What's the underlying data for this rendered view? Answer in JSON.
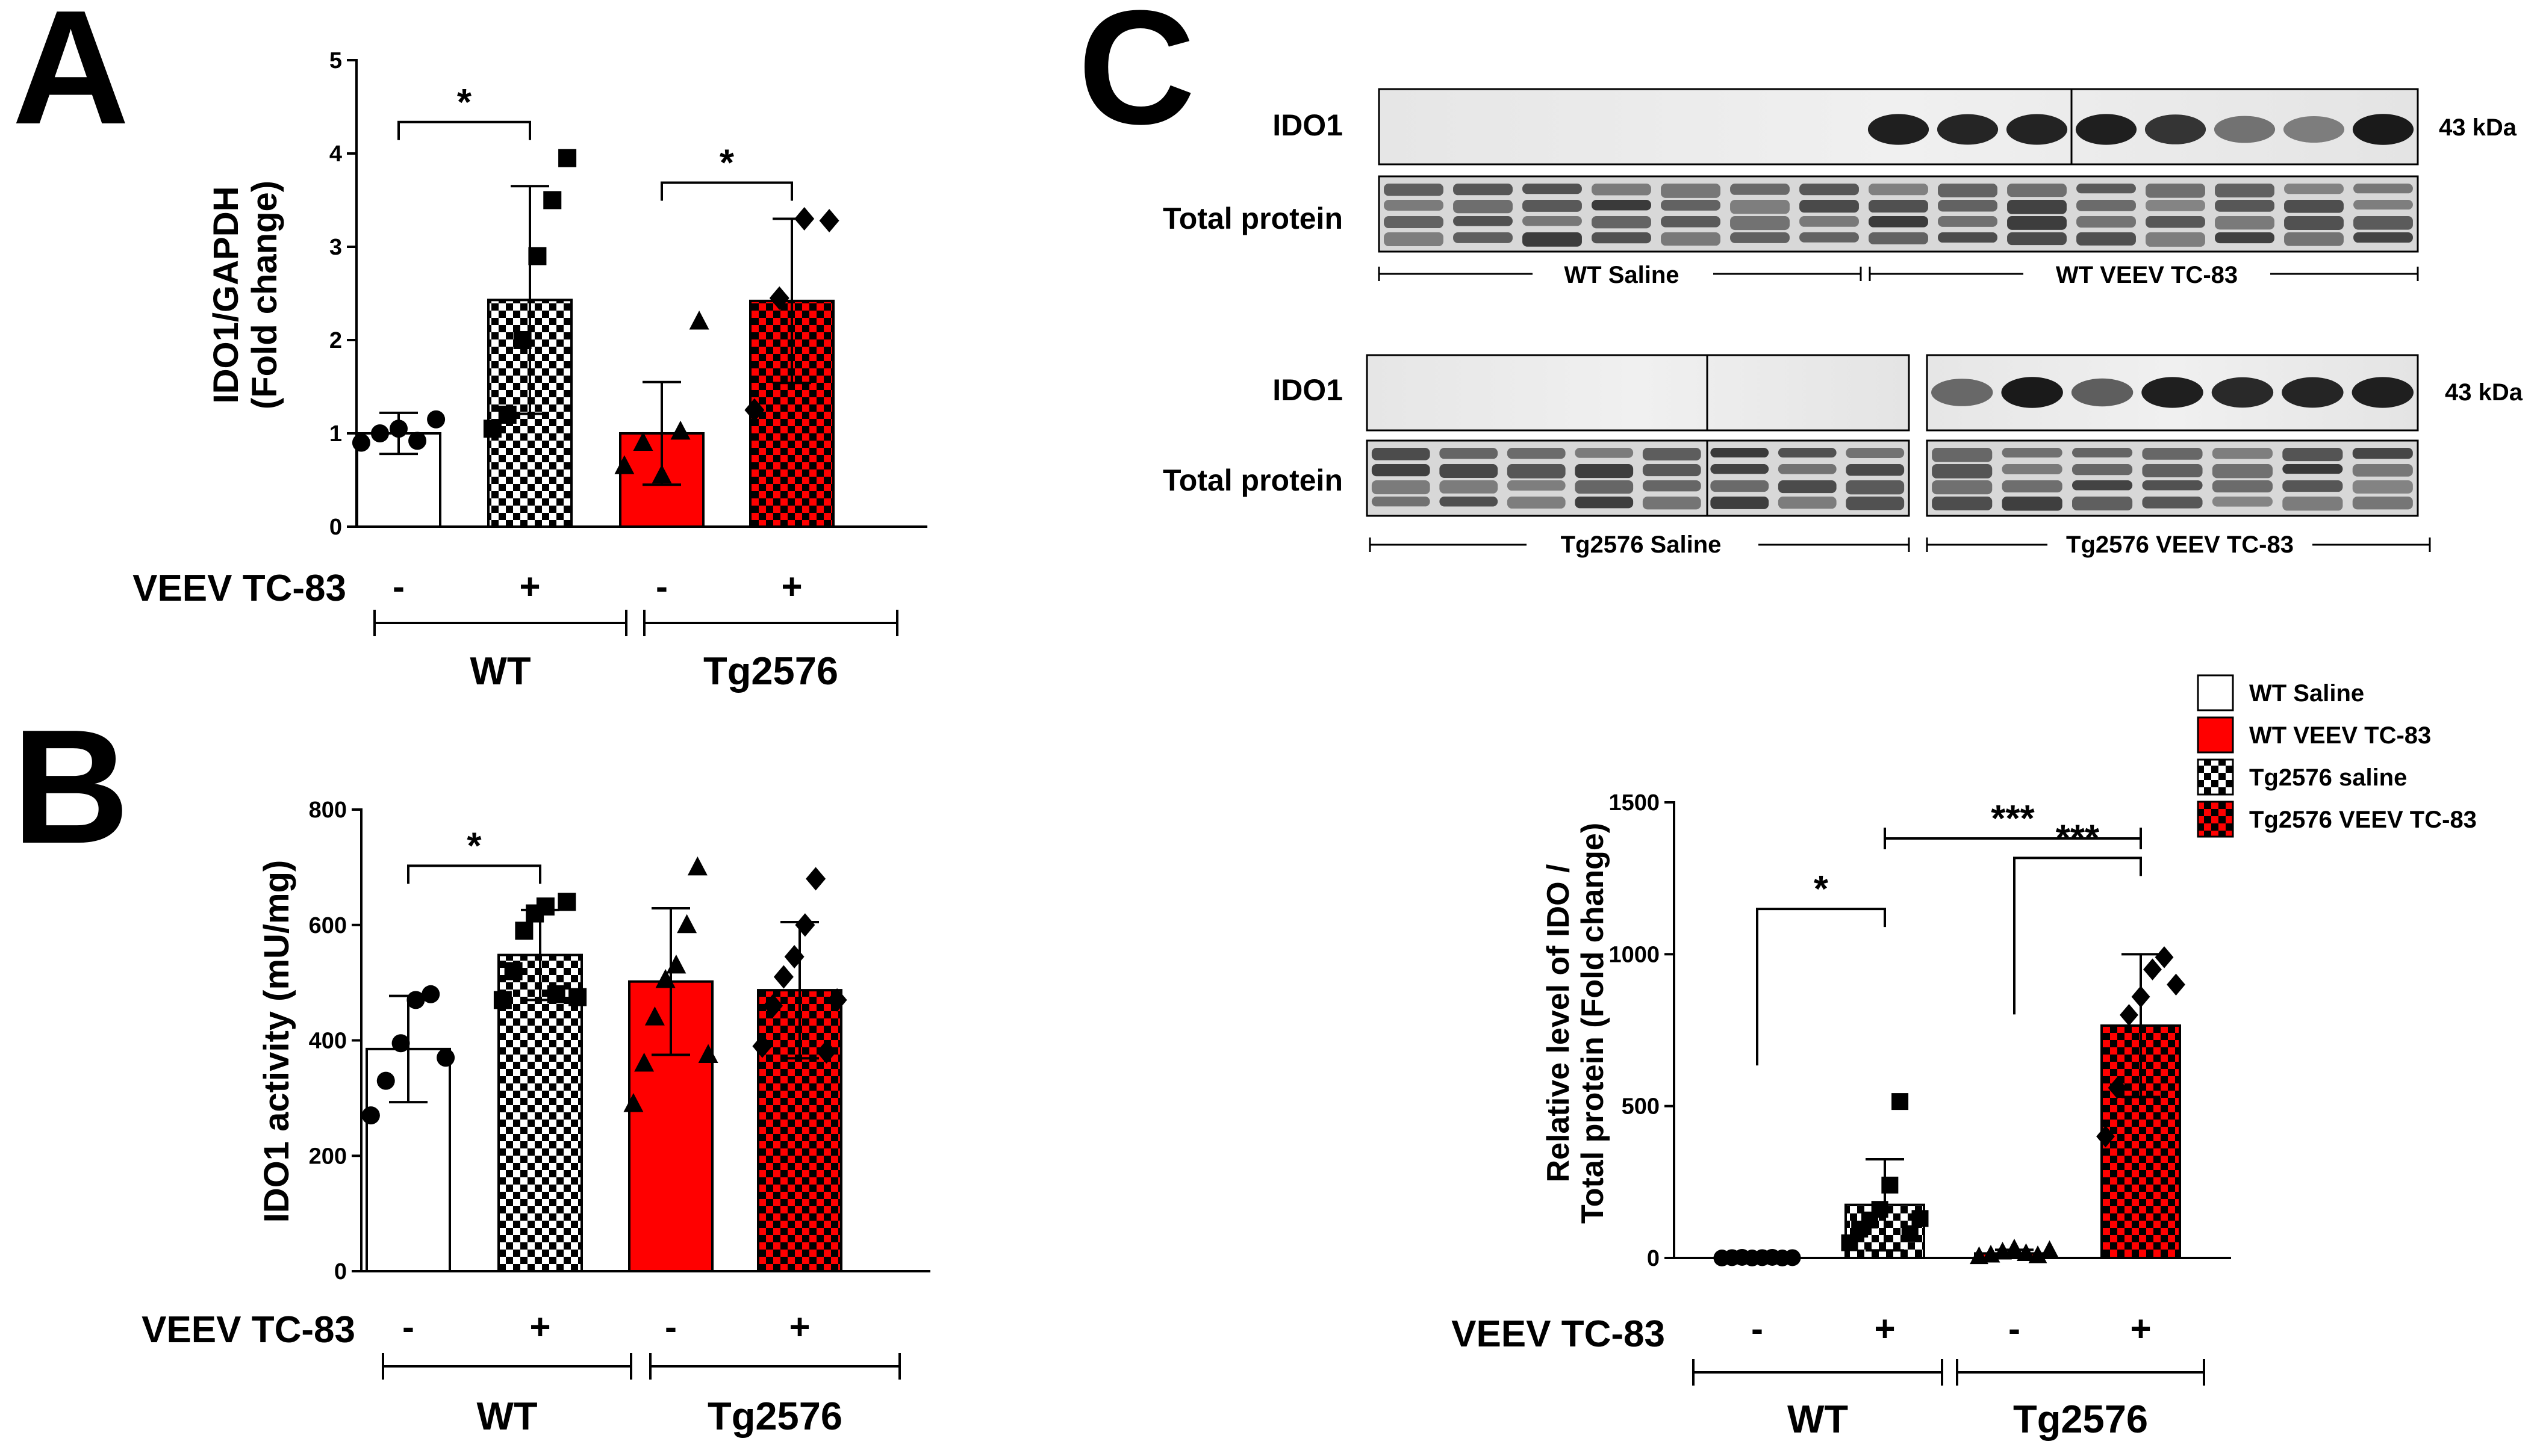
{
  "colors": {
    "black": "#000000",
    "white": "#ffffff",
    "red": "#ff0000",
    "dark_red": "#b00000",
    "blot_bg": "#ececec",
    "band": "#1e1e1e"
  },
  "panels": {
    "A": {
      "letter": "A"
    },
    "B": {
      "letter": "B"
    },
    "C": {
      "letter": "C",
      "blot1": {
        "row1_label": "IDO1",
        "row2_label": "Total protein",
        "kda": "43 kDa",
        "group1": "WT Saline",
        "group2": "WT VEEV TC-83",
        "ido1_band_intensity": [
          0.02,
          0.02,
          0.02,
          0.02,
          0.02,
          0.02,
          0.02,
          0.95,
          0.92,
          0.93,
          0.95,
          0.85,
          0.55,
          0.5,
          0.97
        ]
      },
      "blot2": {
        "row1_label": "IDO1",
        "row2_label": "Total protein",
        "kda": "43 kDa",
        "group1": "Tg2576 Saline",
        "group2": "Tg2576 VEEV TC-83",
        "ido1_band_intensity_left": [
          0.02,
          0.02,
          0.02,
          0.02,
          0.02,
          0.02,
          0.02,
          0.02
        ],
        "ido1_band_intensity_right": [
          0.6,
          0.97,
          0.65,
          0.95,
          0.9,
          0.92,
          0.95
        ]
      }
    }
  },
  "chart_data": [
    {
      "id": "A",
      "type": "bar",
      "title": "",
      "ylabel_line1": "IDO1/GAPDH",
      "ylabel_line2": "(Fold change)",
      "ylim": [
        0,
        5
      ],
      "yticks": [
        "0",
        "1",
        "2",
        "3",
        "4",
        "5"
      ],
      "treatment_label": "VEEV TC-83",
      "treatment_signs": [
        "-",
        "+",
        "-",
        "+"
      ],
      "genotypes": [
        "WT",
        "Tg2576"
      ],
      "categories": [
        "WT Saline",
        "WT VEEV TC-83",
        "Tg2576 saline",
        "Tg2576 VEEV TC-83"
      ],
      "values": [
        1.0,
        2.43,
        1.0,
        2.42
      ],
      "errors": [
        0.22,
        1.22,
        0.55,
        0.88
      ],
      "points": [
        [
          0.9,
          1.0,
          1.05,
          0.92,
          1.15
        ],
        [
          1.05,
          1.2,
          2.0,
          2.9,
          3.5,
          3.95
        ],
        [
          0.65,
          0.9,
          0.55,
          1.02,
          2.2
        ],
        [
          1.25,
          2.45,
          3.3,
          3.28
        ]
      ],
      "markers": [
        "circle",
        "square",
        "triangle",
        "diamond"
      ],
      "sig": [
        {
          "from": 0,
          "to": 1,
          "label": "*"
        },
        {
          "from": 2,
          "to": 3,
          "label": "*"
        }
      ]
    },
    {
      "id": "B",
      "type": "bar",
      "title": "",
      "ylabel_line1": "IDO1 activity (mU/mg)",
      "ylim": [
        0,
        800
      ],
      "yticks": [
        "0",
        "200",
        "400",
        "600",
        "800"
      ],
      "treatment_label": "VEEV TC-83",
      "treatment_signs": [
        "-",
        "+",
        "-",
        "+"
      ],
      "genotypes": [
        "WT",
        "Tg2576"
      ],
      "categories": [
        "WT Saline",
        "WT VEEV TC-83",
        "Tg2576 saline",
        "Tg2576 VEEV TC-83"
      ],
      "values": [
        385,
        548,
        502,
        487
      ],
      "errors": [
        92,
        78,
        127,
        118
      ],
      "points": [
        [
          270,
          330,
          395,
          470,
          480,
          370
        ],
        [
          470,
          520,
          590,
          620,
          632,
          480,
          640,
          475
        ],
        [
          290,
          360,
          440,
          505,
          530,
          600,
          700,
          375
        ],
        [
          390,
          460,
          510,
          545,
          600,
          680,
          380,
          470
        ]
      ],
      "markers": [
        "circle",
        "square",
        "triangle",
        "diamond"
      ],
      "sig": [
        {
          "from": 0,
          "to": 1,
          "label": "*"
        }
      ]
    },
    {
      "id": "C",
      "type": "bar",
      "title": "",
      "ylabel_line1": "Relative level of IDO /",
      "ylabel_line2": "Total protein (Fold change)",
      "ylim": [
        0,
        1500
      ],
      "yticks": [
        "0",
        "500",
        "1000",
        "1500"
      ],
      "treatment_label": "VEEV TC-83",
      "treatment_signs": [
        "-",
        "+",
        "-",
        "+"
      ],
      "genotypes": [
        "WT",
        "Tg2576"
      ],
      "categories": [
        "WT Saline",
        "WT VEEV TC-83",
        "Tg2576 saline",
        "Tg2576 VEEV TC-83"
      ],
      "values": [
        1,
        175,
        15,
        765
      ],
      "errors": [
        2,
        150,
        12,
        235
      ],
      "points": [
        [
          0,
          1,
          2,
          0,
          1,
          2,
          0,
          1
        ],
        [
          50,
          95,
          125,
          160,
          240,
          515,
          80,
          130
        ],
        [
          5,
          10,
          20,
          30,
          15,
          8,
          25
        ],
        [
          400,
          560,
          800,
          860,
          950,
          990,
          900
        ]
      ],
      "markers": [
        "circle",
        "square",
        "triangle",
        "diamond"
      ],
      "sig": [
        {
          "from": 0,
          "to": 1,
          "label": "*"
        },
        {
          "from": 2,
          "to": 3,
          "label": "***"
        },
        {
          "from": 1,
          "to": 3,
          "label": "***"
        }
      ],
      "legend": {
        "position": "top-right",
        "entries": [
          "WT Saline",
          "WT VEEV TC-83",
          "Tg2576 saline",
          "Tg2576 VEEV TC-83"
        ]
      }
    }
  ]
}
